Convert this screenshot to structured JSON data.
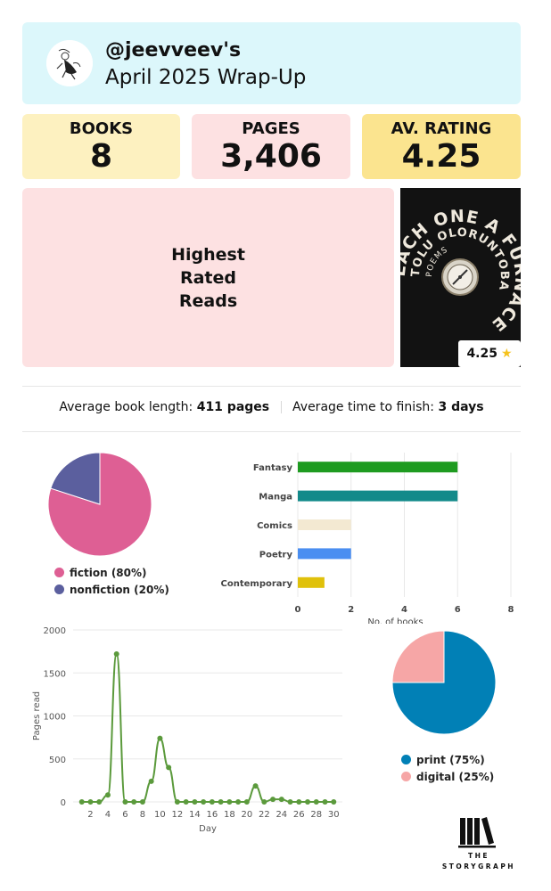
{
  "header": {
    "username": "@jeevveev's",
    "title": "April 2025 Wrap-Up",
    "avatar_icon": "sketch-figure-avatar"
  },
  "stats": [
    {
      "label": "BOOKS",
      "value": "8"
    },
    {
      "label": "PAGES",
      "value": "3,406"
    },
    {
      "label": "AV. RATING",
      "value": "4.25"
    }
  ],
  "highest_rated": {
    "heading_lines": [
      "Highest",
      "Rated",
      "Reads"
    ],
    "cover_text": [
      "EACH ONE A FURNACE",
      "POEMS",
      "TOLU OLORUNTOBA"
    ],
    "rating": "4.25",
    "rating_icon": "star-icon"
  },
  "averages": {
    "length_label": "Average book length:",
    "length_value": "411 pages",
    "time_label": "Average time to finish:",
    "time_value": "3 days"
  },
  "fiction_pie": {
    "slices": [
      {
        "label": "fiction (80%)",
        "value": 80,
        "color": "#de5f94"
      },
      {
        "label": "nonfiction (20%)",
        "value": 20,
        "color": "#5b5f9e"
      }
    ]
  },
  "format_pie": {
    "slices": [
      {
        "label": "print (75%)",
        "value": 75,
        "color": "#0180b6"
      },
      {
        "label": "digital (25%)",
        "value": 25,
        "color": "#f6a6a6"
      }
    ]
  },
  "chart_data": [
    {
      "type": "pie",
      "categories": [
        "fiction (80%)",
        "nonfiction (20%)"
      ],
      "values": [
        80,
        20
      ]
    },
    {
      "type": "bar",
      "orientation": "horizontal",
      "categories": [
        "Fantasy",
        "Manga",
        "Comics",
        "Poetry",
        "Contemporary"
      ],
      "values": [
        6,
        6,
        2,
        2,
        1
      ],
      "colors": [
        "#1e9b20",
        "#138a8a",
        "#f3e9d2",
        "#4a8ef1",
        "#e0c10b"
      ],
      "xlabel": "No. of books",
      "xticks": [
        "0",
        "2",
        "4",
        "6",
        "8"
      ],
      "xlim": [
        0,
        8
      ],
      "grid": true
    },
    {
      "type": "line",
      "x": [
        1,
        2,
        3,
        4,
        5,
        6,
        7,
        8,
        9,
        10,
        11,
        12,
        13,
        14,
        15,
        16,
        17,
        18,
        19,
        20,
        21,
        22,
        23,
        24,
        25,
        26,
        27,
        28,
        29,
        30
      ],
      "y": [
        0,
        0,
        0,
        80,
        1720,
        0,
        0,
        0,
        240,
        740,
        400,
        0,
        0,
        0,
        0,
        0,
        0,
        0,
        0,
        0,
        185,
        0,
        30,
        30,
        0,
        0,
        0,
        0,
        0,
        0
      ],
      "color": "#5b9a3c",
      "xlabel": "Day",
      "ylabel": "Pages read",
      "xticks": [
        "2",
        "4",
        "6",
        "8",
        "10",
        "12",
        "14",
        "16",
        "18",
        "20",
        "22",
        "24",
        "26",
        "28",
        "30"
      ],
      "yticks": [
        "0",
        "500",
        "1000",
        "1500",
        "2000"
      ],
      "ylim": [
        0,
        2000
      ],
      "xlim": [
        0,
        31
      ],
      "grid": true
    },
    {
      "type": "pie",
      "categories": [
        "print (75%)",
        "digital (25%)"
      ],
      "values": [
        75,
        25
      ]
    }
  ],
  "logo": {
    "line1": "THE",
    "line2": "STORYGRAPH",
    "icon": "storygraph-logo-icon"
  }
}
